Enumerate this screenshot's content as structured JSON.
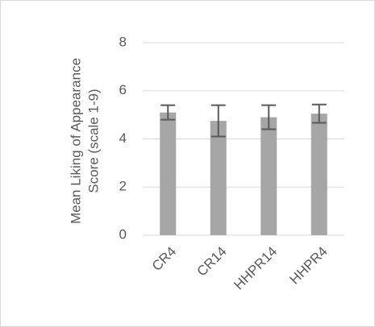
{
  "chart_data": {
    "type": "bar",
    "y_label": [
      "Mean Liking of Appearance",
      "Score (scale 1-9)"
    ],
    "categories": [
      "CR4",
      "CR14",
      "HHPR14",
      "HHPR4"
    ],
    "values": [
      5.1,
      4.75,
      4.9,
      5.05
    ],
    "errors": [
      0.3,
      0.65,
      0.5,
      0.38
    ],
    "color": "#a6a6a6",
    "error_color": "#595959",
    "ylim": [
      0,
      8
    ],
    "yticks": [
      0,
      2,
      4,
      6,
      8
    ],
    "grid": true
  }
}
